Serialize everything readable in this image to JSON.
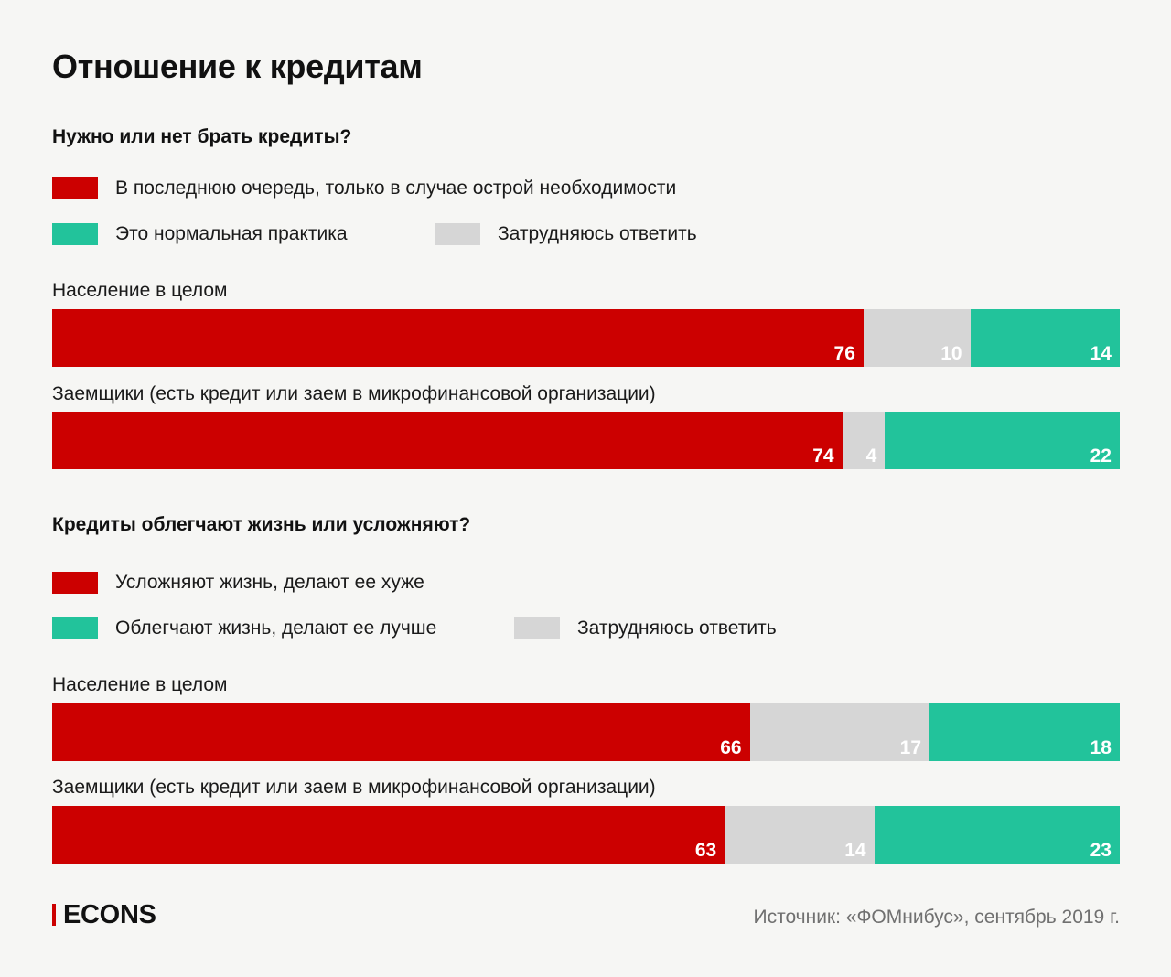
{
  "title": "Отношение к кредитам",
  "colors": {
    "red": "#cc0000",
    "green": "#22c39b",
    "gray": "#d6d6d6",
    "white": "#ffffff"
  },
  "chart_data": [
    {
      "type": "bar",
      "stacked": true,
      "orientation": "horizontal",
      "title": "Нужно или нет брать кредиты?",
      "xlim": [
        0,
        100
      ],
      "categories": [
        "Население в целом",
        "Заемщики (есть кредит или заем в микрофинансовой организации)"
      ],
      "series": [
        {
          "name": "В последнюю очередь, только в случае острой необходимости",
          "color": "#cc0000",
          "values": [
            76,
            74
          ]
        },
        {
          "name": "Затрудняюсь ответить",
          "color": "#d6d6d6",
          "values": [
            10,
            4
          ]
        },
        {
          "name": "Это нормальная практика",
          "color": "#22c39b",
          "values": [
            14,
            22
          ]
        }
      ]
    },
    {
      "type": "bar",
      "stacked": true,
      "orientation": "horizontal",
      "title": "Кредиты облегчают жизнь или усложняют?",
      "xlim": [
        0,
        100
      ],
      "categories": [
        "Население в целом",
        "Заемщики (есть кредит или заем в микрофинансовой организации)"
      ],
      "series": [
        {
          "name": "Усложняют жизнь, делают ее хуже",
          "color": "#cc0000",
          "values": [
            66,
            63
          ]
        },
        {
          "name": "Затрудняюсь ответить",
          "color": "#d6d6d6",
          "values": [
            17,
            14
          ]
        },
        {
          "name": "Облегчают жизнь, делают ее лучше",
          "color": "#22c39b",
          "values": [
            18,
            23
          ]
        }
      ]
    }
  ],
  "footer": {
    "logo": "ECONS",
    "source": "Источник: «ФОМнибус», сентябрь 2019 г."
  }
}
